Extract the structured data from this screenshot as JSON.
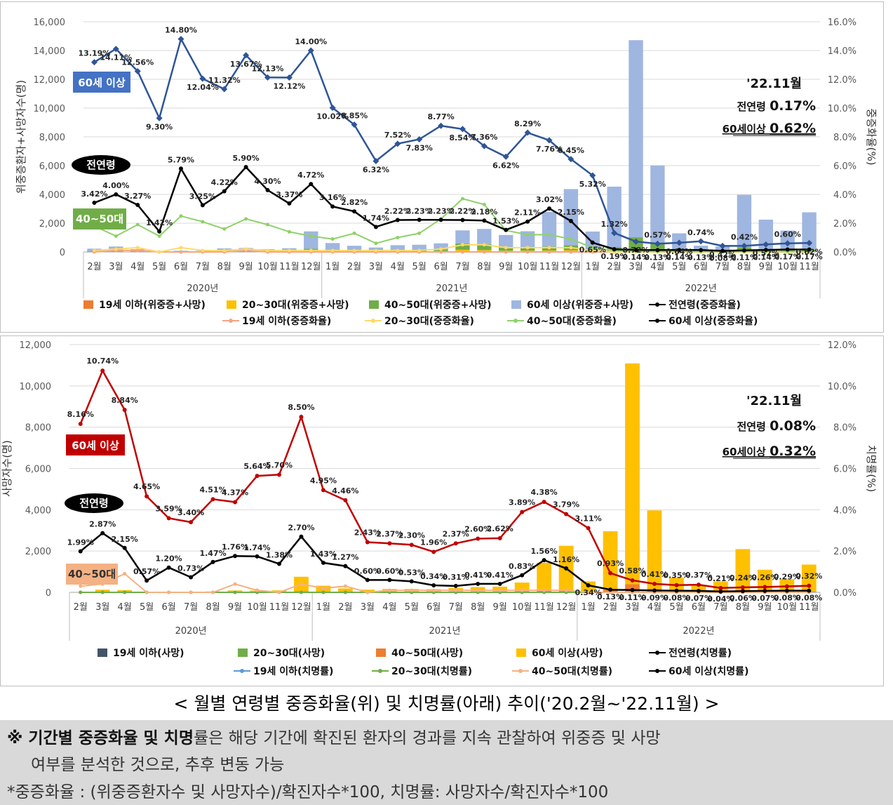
{
  "chart_data": [
    {
      "type": "bar",
      "id": "severe_rate",
      "categories": [
        "2월",
        "3월",
        "4월",
        "5월",
        "6월",
        "7월",
        "8월",
        "9월",
        "10월",
        "11월",
        "12월",
        "1월",
        "2월",
        "3월",
        "4월",
        "5월",
        "6월",
        "7월",
        "8월",
        "9월",
        "10월",
        "11월",
        "12월",
        "1월",
        "2월",
        "3월",
        "4월",
        "5월",
        "6월",
        "7월",
        "8월",
        "9월",
        "10월",
        "11월"
      ],
      "year_labels": [
        "2020년",
        "2021년",
        "2022년"
      ],
      "ylim": [
        0,
        16000
      ],
      "y_ticks": [
        "0",
        "2,000",
        "4,000",
        "6,000",
        "8,000",
        "10,000",
        "12,000",
        "14,000",
        "16,000"
      ],
      "y2lim": [
        0,
        16
      ],
      "y2_ticks": [
        "0.0%",
        "2.0%",
        "4.0%",
        "6.0%",
        "8.0%",
        "10.0%",
        "12.0%",
        "14.0%",
        "16.0%"
      ],
      "ylabel": "위중증환자+사망자수(명)",
      "y2label": "중증화율(%)",
      "bar_series": [
        {
          "name": "19세 이하(위중증+사망)",
          "color": "#ed7d31",
          "values": [
            0,
            0,
            0,
            0,
            0,
            0,
            0,
            0,
            0,
            0,
            0,
            0,
            0,
            0,
            0,
            0,
            0,
            0,
            0,
            0,
            0,
            0,
            0,
            0,
            10,
            20,
            15,
            5,
            5,
            5,
            10,
            5,
            5,
            5
          ]
        },
        {
          "name": "20~30대(위중증+사망)",
          "color": "#ffc000",
          "values": [
            20,
            30,
            15,
            5,
            10,
            10,
            20,
            15,
            15,
            20,
            80,
            40,
            30,
            20,
            30,
            40,
            60,
            150,
            130,
            80,
            90,
            100,
            120,
            40,
            80,
            150,
            100,
            40,
            30,
            30,
            60,
            40,
            30,
            30
          ]
        },
        {
          "name": "40~50대(위중증+사망)",
          "color": "#70ad47",
          "values": [
            30,
            50,
            30,
            10,
            15,
            15,
            30,
            40,
            30,
            40,
            150,
            80,
            50,
            40,
            60,
            80,
            120,
            450,
            420,
            250,
            250,
            280,
            350,
            80,
            250,
            850,
            450,
            150,
            100,
            100,
            250,
            150,
            100,
            120
          ]
        },
        {
          "name": "60세 이상(위중증+사망)",
          "color": "#9fb6e0",
          "values": [
            180,
            300,
            150,
            40,
            60,
            50,
            200,
            220,
            150,
            200,
            1200,
            500,
            350,
            250,
            380,
            380,
            420,
            900,
            1050,
            850,
            1100,
            2400,
            3900,
            1300,
            4200,
            13700,
            5450,
            1100,
            300,
            250,
            3650,
            2050,
            1350,
            2600
          ]
        }
      ],
      "line_series": [
        {
          "name": "19세 이하(중증화율)",
          "color": "#f4a582",
          "values": [
            0.0,
            0.1,
            0.1,
            0.0,
            0.0,
            0.0,
            0.0,
            0.1,
            0.0,
            0.0,
            0.0,
            0.0,
            0.0,
            0.0,
            0.0,
            0.0,
            0.0,
            0.0,
            0.0,
            0.0,
            0.0,
            0.0,
            0.0,
            0.0,
            0.0,
            0.0,
            0.0,
            0.0,
            0.0,
            0.0,
            0.0,
            0.0,
            0.0,
            0.0
          ]
        },
        {
          "name": "20~30대(중증화율)",
          "color": "#ffd966",
          "values": [
            0.1,
            0.2,
            0.3,
            0.0,
            0.3,
            0.1,
            0.1,
            0.2,
            0.1,
            0.1,
            0.1,
            0.1,
            0.1,
            0.1,
            0.1,
            0.1,
            0.2,
            0.5,
            0.5,
            0.3,
            0.3,
            0.3,
            0.3,
            0.1,
            0.0,
            0.0,
            0.0,
            0.0,
            0.0,
            0.0,
            0.0,
            0.0,
            0.0,
            0.0
          ]
        },
        {
          "name": "40~50대(중증화율)",
          "color": "#8fd16a",
          "values": [
            1.8,
            1.1,
            1.9,
            1.1,
            2.5,
            2.1,
            1.6,
            2.3,
            1.9,
            1.4,
            1.1,
            0.9,
            1.3,
            0.6,
            1.0,
            1.3,
            2.3,
            3.7,
            3.3,
            1.5,
            1.2,
            1.2,
            0.9,
            0.3,
            0.1,
            0.05,
            0.04,
            0.03,
            0.03,
            0.02,
            0.03,
            0.03,
            0.03,
            0.03
          ]
        },
        {
          "name": "전연령(중증화율)",
          "color": "#000000",
          "values": [
            3.42,
            4.0,
            3.27,
            1.42,
            5.79,
            3.25,
            4.22,
            5.9,
            4.3,
            3.37,
            4.72,
            3.16,
            2.82,
            1.74,
            2.22,
            2.23,
            2.23,
            2.22,
            2.18,
            1.53,
            2.11,
            3.02,
            2.15,
            0.65,
            0.19,
            0.14,
            0.13,
            0.14,
            0.13,
            0.08,
            0.11,
            0.14,
            0.17,
            0.17
          ]
        },
        {
          "name": "60세 이상(중증화율)",
          "color": "#2f5597",
          "values": [
            13.19,
            14.11,
            12.56,
            9.3,
            14.8,
            12.04,
            11.32,
            13.67,
            12.13,
            12.12,
            14.0,
            10.02,
            8.85,
            6.32,
            7.52,
            7.83,
            8.77,
            8.54,
            7.36,
            6.62,
            8.29,
            7.76,
            6.45,
            5.32,
            1.32,
            0.72,
            0.57,
            0.64,
            0.74,
            0.42,
            0.42,
            0.52,
            0.6,
            0.62
          ]
        }
      ],
      "labels_60": [
        "13.19%",
        "14.11%",
        "12.56%",
        "9.30%",
        "14.80%",
        "12.04%",
        "11.32%",
        "13.67%",
        "12.13%",
        "12.12%",
        "14.00%",
        "10.02%",
        "8.85%",
        "6.32%",
        "7.52%",
        "7.83%",
        "8.77%",
        "8.54%",
        "7.36%",
        "6.62%",
        "8.29%",
        "7.76%",
        "6.45%",
        "5.32%",
        "1.32%",
        "0.72%",
        "0.57%",
        "0.64%",
        "0.74%",
        "0.42%",
        "0.42%",
        "0.52%",
        "0.60%",
        "0.62%"
      ],
      "labels_all": [
        "3.42%",
        "4.00%",
        "3.27%",
        "1.42%",
        "5.79%",
        "3.25%",
        "4.22%",
        "5.90%",
        "4.30%",
        "3.37%",
        "4.72%",
        "3.16%",
        "2.82%",
        "1.74%",
        "2.22%",
        "2.23%",
        "2.23%",
        "2.22%",
        "2.18%",
        "1.53%",
        "2.11%",
        "3.02%",
        "2.15%",
        "0.65%",
        "0.19%",
        "0.14%",
        "0.13%",
        "0.14%",
        "0.13%",
        "0.08%",
        "0.11%",
        "0.14%",
        "0.17%",
        "0.17%"
      ],
      "legend": [
        "19세 이하(위중증+사망)",
        "20~30대(위중증+사망)",
        "40~50대(위중증+사망)",
        "60세 이상(위중증+사망)",
        "전연령(중증화율)",
        "19세 이하(중증화율)",
        "20~30대(중증화율)",
        "40~50대(중증화율)",
        "60세 이상(중증화율)"
      ],
      "tag_60": "60세 이상",
      "tag_all": "전연령",
      "tag_4050": "40~50대",
      "summary": {
        "title": "'22.11월",
        "line1_label": "전연령",
        "line1_value": "0.17%",
        "line2_label": "60세이상",
        "line2_value": "0.62%"
      }
    },
    {
      "type": "bar",
      "id": "fatality_rate",
      "categories": [
        "2월",
        "3월",
        "4월",
        "5월",
        "6월",
        "7월",
        "8월",
        "9월",
        "10월",
        "11월",
        "12월",
        "1월",
        "2월",
        "3월",
        "4월",
        "5월",
        "6월",
        "7월",
        "8월",
        "9월",
        "10월",
        "11월",
        "12월",
        "1월",
        "2월",
        "3월",
        "4월",
        "5월",
        "6월",
        "7월",
        "8월",
        "9월",
        "10월",
        "11월"
      ],
      "year_labels": [
        "2020년",
        "2021년",
        "2022년"
      ],
      "ylim": [
        0,
        12000
      ],
      "y_ticks": [
        "0",
        "2,000",
        "4,000",
        "6,000",
        "8,000",
        "10,000",
        "12,000"
      ],
      "y2lim": [
        0,
        12
      ],
      "y2_ticks": [
        "0.0%",
        "2.0%",
        "4.0%",
        "6.0%",
        "8.0%",
        "10.0%",
        "12.0%"
      ],
      "ylabel": "사망자수(명)",
      "y2label": "치명률(%)",
      "bar_series": [
        {
          "name": "19세 이하(사망)",
          "color": "#44546a",
          "values": [
            0,
            0,
            0,
            0,
            0,
            0,
            0,
            0,
            0,
            0,
            0,
            0,
            0,
            0,
            0,
            0,
            0,
            0,
            0,
            0,
            0,
            0,
            0,
            0,
            0,
            10,
            5,
            0,
            0,
            0,
            5,
            0,
            0,
            0
          ]
        },
        {
          "name": "20~30대(사망)",
          "color": "#70ad47",
          "values": [
            0,
            0,
            0,
            0,
            0,
            0,
            0,
            0,
            0,
            0,
            5,
            0,
            0,
            0,
            0,
            0,
            0,
            0,
            5,
            5,
            5,
            5,
            5,
            0,
            10,
            30,
            15,
            5,
            0,
            5,
            10,
            5,
            5,
            5
          ]
        },
        {
          "name": "40~50대(사망)",
          "color": "#ed7d31",
          "values": [
            0,
            10,
            5,
            0,
            0,
            0,
            5,
            10,
            5,
            5,
            50,
            20,
            20,
            10,
            15,
            15,
            15,
            25,
            30,
            40,
            50,
            80,
            100,
            30,
            100,
            350,
            150,
            30,
            20,
            20,
            80,
            40,
            30,
            40
          ]
        },
        {
          "name": "60세 이상(사망)",
          "color": "#ffc000",
          "values": [
            20,
            120,
            100,
            20,
            10,
            10,
            40,
            80,
            80,
            90,
            700,
            300,
            170,
            120,
            150,
            150,
            140,
            180,
            220,
            230,
            420,
            1350,
            2150,
            500,
            2850,
            10700,
            3800,
            680,
            300,
            500,
            2000,
            1050,
            600,
            1300
          ]
        }
      ],
      "line_series": [
        {
          "name": "19세 이하(치명률)",
          "color": "#5b9bd5",
          "values": [
            0,
            0,
            0,
            0,
            0,
            0,
            0,
            0,
            0,
            0,
            0,
            0,
            0,
            0,
            0,
            0,
            0,
            0,
            0,
            0,
            0,
            0,
            0,
            0,
            0,
            0,
            0,
            0,
            0,
            0,
            0,
            0,
            0,
            0
          ]
        },
        {
          "name": "20~30대(치명률)",
          "color": "#70ad47",
          "values": [
            0,
            0,
            0,
            0,
            0,
            0,
            0,
            0,
            0,
            0,
            0,
            0,
            0,
            0,
            0,
            0,
            0,
            0,
            0,
            0,
            0,
            0,
            0,
            0,
            0,
            0,
            0,
            0,
            0,
            0,
            0,
            0,
            0,
            0
          ]
        },
        {
          "name": "40~50대(치명률)",
          "color": "#f4b183",
          "values": [
            0.3,
            0.4,
            0.9,
            0.0,
            0.0,
            0.0,
            0.0,
            0.4,
            0.1,
            0.0,
            0.4,
            0.2,
            0.3,
            0.0,
            0.1,
            0.1,
            0.1,
            0.1,
            0.1,
            0.1,
            0.1,
            0.1,
            0.1,
            0.0,
            0.0,
            0.0,
            0.0,
            0.0,
            0.0,
            0.0,
            0.0,
            0.0,
            0.0,
            0.0
          ]
        },
        {
          "name": "전연령(치명률)",
          "color": "#000000",
          "values": [
            1.99,
            2.87,
            2.15,
            0.57,
            1.2,
            0.73,
            1.47,
            1.76,
            1.74,
            1.38,
            2.7,
            1.43,
            1.27,
            0.6,
            0.6,
            0.53,
            0.34,
            0.31,
            0.41,
            0.41,
            0.83,
            1.56,
            1.16,
            0.34,
            0.13,
            0.11,
            0.09,
            0.08,
            0.07,
            0.04,
            0.06,
            0.07,
            0.08,
            0.08
          ]
        },
        {
          "name": "60세 이상(치명률)",
          "color": "#c00000",
          "values": [
            8.16,
            10.74,
            8.84,
            4.65,
            3.59,
            3.4,
            4.51,
            4.37,
            5.64,
            5.7,
            8.5,
            4.95,
            4.46,
            2.43,
            2.37,
            2.3,
            1.96,
            2.37,
            2.6,
            2.62,
            3.89,
            4.38,
            3.79,
            3.11,
            0.93,
            0.58,
            0.41,
            0.35,
            0.37,
            0.21,
            0.24,
            0.26,
            0.29,
            0.32
          ]
        }
      ],
      "labels_60": [
        "8.16%",
        "10.74%",
        "8.84%",
        "4.65%",
        "3.59%",
        "3.40%",
        "4.51%",
        "4.37%",
        "5.64%",
        "5.70%",
        "8.50%",
        "4.95%",
        "4.46%",
        "2.43%",
        "2.37%",
        "2.30%",
        "1.96%",
        "2.37%",
        "2.60%",
        "2.62%",
        "3.89%",
        "4.38%",
        "3.79%",
        "3.11%",
        "0.93%",
        "0.58%",
        "0.41%",
        "0.35%",
        "0.37%",
        "0.21%",
        "0.24%",
        "0.26%",
        "0.29%",
        "0.32%"
      ],
      "labels_all": [
        "1.99%",
        "2.87%",
        "2.15%",
        "0.57%",
        "1.20%",
        "0.73%",
        "1.47%",
        "1.76%",
        "1.74%",
        "1.38%",
        "2.70%",
        "1.43%",
        "1.27%",
        "0.60%",
        "0.60%",
        "0.53%",
        "0.34%",
        "0.31%",
        "0.41%",
        "0.41%",
        "0.83%",
        "1.56%",
        "1.16%",
        "0.34%",
        "0.13%",
        "0.11%",
        "0.09%",
        "0.08%",
        "0.07%",
        "0.04%",
        "0.06%",
        "0.07%",
        "0.08%",
        "0.08%"
      ],
      "legend": [
        "19세 이하(사망)",
        "20~30대(사망)",
        "40~50대(사망)",
        "60세 이상(사망)",
        "전연령(치명률)",
        "19세 이하(치명률)",
        "20~30대(치명률)",
        "40~50대(치명률)",
        "60세 이상(치명률)"
      ],
      "tag_60": "60세 이상",
      "tag_all": "전연령",
      "tag_4050": "40~50대",
      "summary": {
        "title": "'22.11월",
        "line1_label": "전연령",
        "line1_value": "0.08%",
        "line2_label": "60세이상",
        "line2_value": "0.32%"
      }
    }
  ],
  "caption": "< 월별 연령별 중증화율(위) 및 치명률(아래) 추이('20.2월~'22.11월) >",
  "note": {
    "line1_bold": "※ 기간별 중증화율 및 치명",
    "line1_rest": "률은 해당 기간에 확진된 환자의 경과를 지속 관찰하여 위중증 및 사망",
    "line2": "여부를 분석한 것으로, 추후 변동 가능",
    "line3": "*중증화율 : (위중증환자수 및 사망자수)/확진자수*100, 치명률: 사망자수/확진자수*100"
  }
}
